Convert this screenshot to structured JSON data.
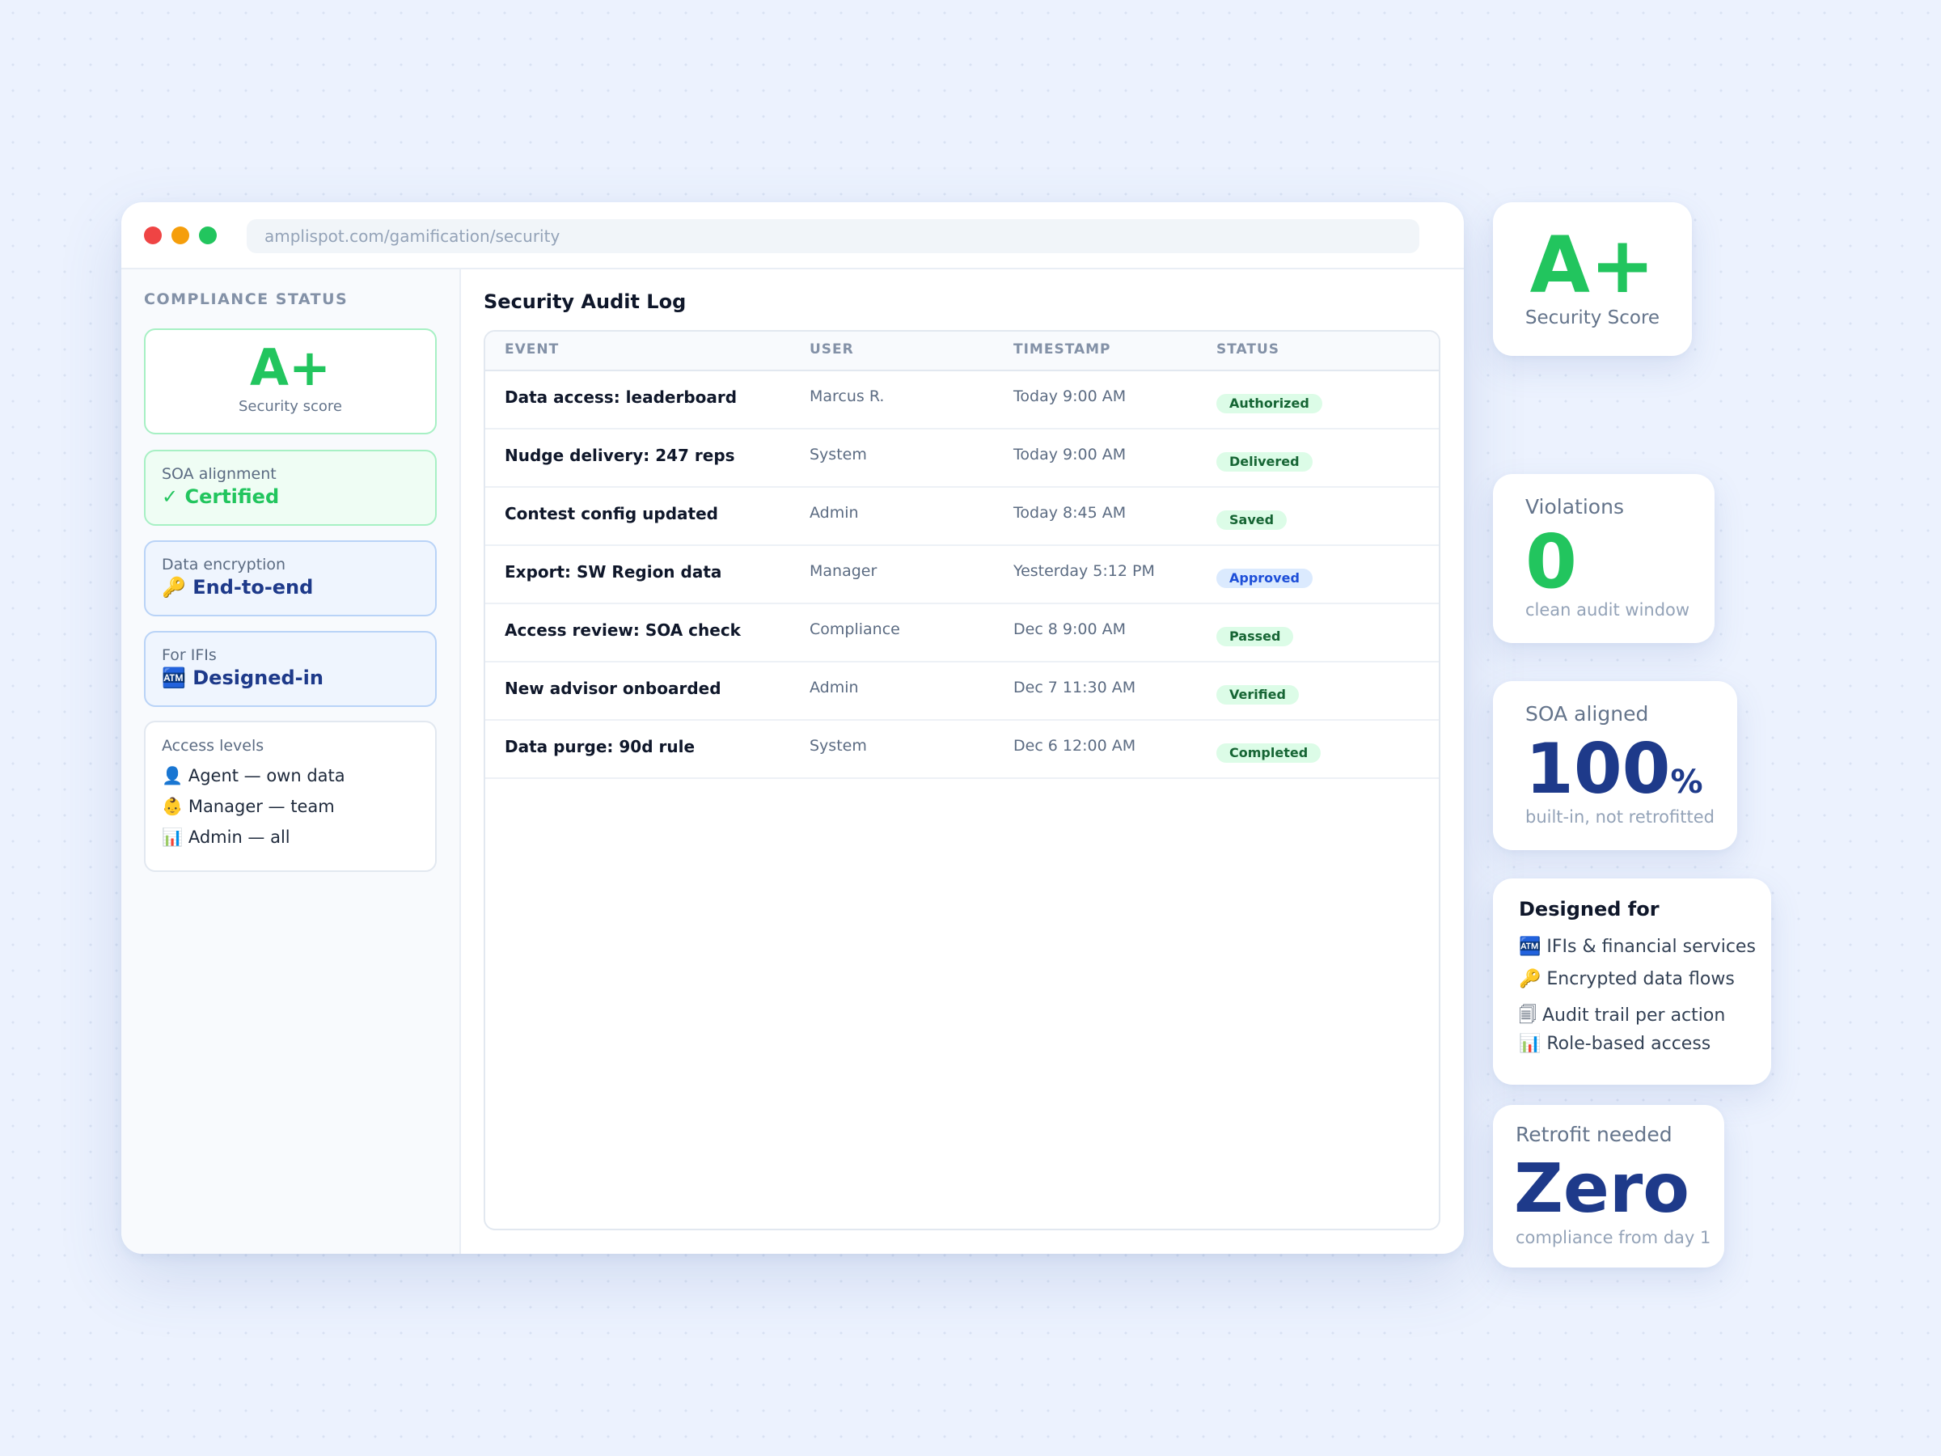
{
  "browser": {
    "url": "amplispot.com/gamification/security"
  },
  "sidebar": {
    "heading": "COMPLIANCE STATUS",
    "score_grade": "A+",
    "score_label": "Security score",
    "cards": [
      {
        "label": "SOA alignment",
        "value": "✓ Certified"
      },
      {
        "label": "Data encryption",
        "value": "🔑 End-to-end"
      },
      {
        "label": "For IFIs",
        "value": "🏧 Designed-in"
      }
    ],
    "access": {
      "label": "Access levels",
      "items": [
        "👤 Agent — own data",
        "👶 Manager — team",
        "📊 Admin — all"
      ]
    }
  },
  "main": {
    "title": "Security Audit Log",
    "columns": [
      "EVENT",
      "USER",
      "TIMESTAMP",
      "STATUS"
    ],
    "rows": [
      {
        "event": "Data access: leaderboard",
        "user": "Marcus R.",
        "timestamp": "Today 9:00 AM",
        "status": "Authorized",
        "status_color": "green"
      },
      {
        "event": "Nudge delivery: 247 reps",
        "user": "System",
        "timestamp": "Today 9:00 AM",
        "status": "Delivered",
        "status_color": "green"
      },
      {
        "event": "Contest config updated",
        "user": "Admin",
        "timestamp": "Today 8:45 AM",
        "status": "Saved",
        "status_color": "green"
      },
      {
        "event": "Export: SW Region data",
        "user": "Manager",
        "timestamp": "Yesterday 5:12 PM",
        "status": "Approved",
        "status_color": "blue"
      },
      {
        "event": "Access review: SOA check",
        "user": "Compliance",
        "timestamp": "Dec 8 9:00 AM",
        "status": "Passed",
        "status_color": "green"
      },
      {
        "event": "New advisor onboarded",
        "user": "Admin",
        "timestamp": "Dec 7 11:30 AM",
        "status": "Verified",
        "status_color": "green"
      },
      {
        "event": "Data purge: 90d rule",
        "user": "System",
        "timestamp": "Dec 6 12:00 AM",
        "status": "Completed",
        "status_color": "green"
      }
    ]
  },
  "stats": {
    "score": {
      "grade": "A+",
      "label": "Security Score"
    },
    "violations": {
      "label": "Violations",
      "value": "0",
      "sub": "clean audit window"
    },
    "soa": {
      "label": "SOA aligned",
      "value": "100",
      "unit": "%",
      "sub": "built-in, not retrofitted"
    },
    "designed_for": {
      "title": "Designed for",
      "items": [
        "🏧 IFIs & financial services",
        "🔑 Encrypted data flows",
        "🗐 Audit trail per action",
        "📊 Role-based access"
      ]
    },
    "retrofit": {
      "label": "Retrofit needed",
      "value": "Zero",
      "sub": "compliance from day 1"
    }
  },
  "colors": {
    "green": "#22c55e",
    "navy": "#1e3a8a",
    "background": "#ecf2fe"
  }
}
